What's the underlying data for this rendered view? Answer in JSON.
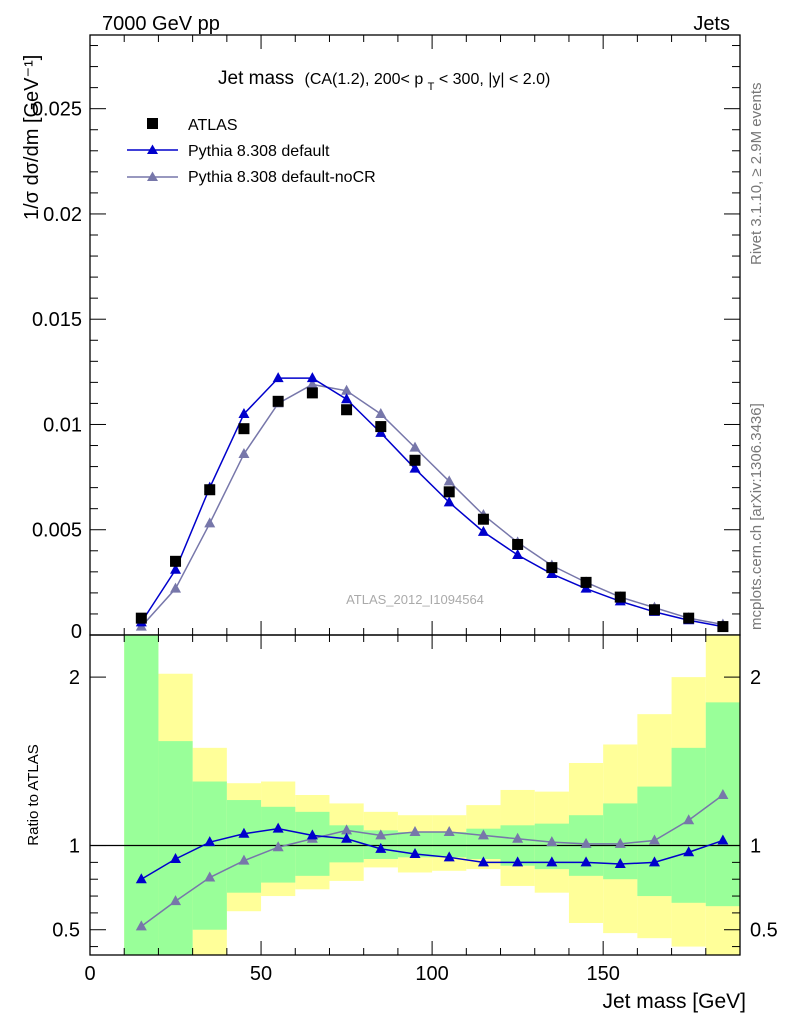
{
  "header": {
    "left": "7000 GeV pp",
    "right": "Jets"
  },
  "side_labels": {
    "rivet": "Rivet 3.1.10, ≥ 2.9M events",
    "mcplots": "mcplots.cern.ch [arXiv:1306.3436]"
  },
  "chart_data": [
    {
      "type": "scatter",
      "panel": "main",
      "title_main": "Jet mass",
      "title_detail_pre": "(CA(1.2), 200< p",
      "title_detail_sub": "T",
      "title_detail_post": " < 300, |y| < 2.0)",
      "ylabel": "1/σ dσ/dm [GeV⁻¹]",
      "watermark": "ATLAS_2012_I1094564",
      "xlim": [
        0,
        190
      ],
      "ylim": [
        0,
        0.0285
      ],
      "yticks": [
        0.005,
        0.01,
        0.015,
        0.02,
        0.025
      ],
      "ytick_labels": [
        "0.005",
        "0.01",
        "0.015",
        "0.02",
        "0.025"
      ],
      "ytick_zero_label": "0",
      "legend_position": "top-left",
      "x": [
        15,
        25,
        35,
        45,
        55,
        65,
        75,
        85,
        95,
        105,
        115,
        125,
        135,
        145,
        155,
        165,
        175,
        185
      ],
      "series": [
        {
          "name": "ATLAS",
          "marker": "square",
          "color": "#000000",
          "values": [
            0.0008,
            0.0035,
            0.0069,
            0.0098,
            0.0111,
            0.0115,
            0.0107,
            0.0099,
            0.0083,
            0.0068,
            0.0055,
            0.0043,
            0.0032,
            0.0025,
            0.0018,
            0.0012,
            0.0008,
            0.0004
          ]
        },
        {
          "name": "Pythia 8.308 default",
          "marker": "triangle",
          "color": "#0000cc",
          "values": [
            0.0006,
            0.0031,
            0.007,
            0.0105,
            0.0122,
            0.0122,
            0.0112,
            0.0096,
            0.0079,
            0.0063,
            0.0049,
            0.0038,
            0.0029,
            0.0022,
            0.0016,
            0.0011,
            0.0007,
            0.0004
          ]
        },
        {
          "name": "Pythia 8.308 default-noCR",
          "marker": "triangle",
          "color": "#7777aa",
          "values": [
            0.0004,
            0.0022,
            0.0053,
            0.0086,
            0.011,
            0.0119,
            0.0116,
            0.0105,
            0.0089,
            0.0073,
            0.0057,
            0.0044,
            0.0033,
            0.0025,
            0.0018,
            0.0013,
            0.0008,
            0.0005
          ]
        }
      ]
    },
    {
      "type": "line",
      "panel": "ratio",
      "ylabel": "Ratio to ATLAS",
      "xlabel": "Jet mass [GeV]",
      "xlim": [
        0,
        190
      ],
      "ylim": [
        0.35,
        2.25
      ],
      "xticks": [
        0,
        50,
        100,
        150
      ],
      "yticks": [
        0.5,
        1,
        2
      ],
      "ytick_labels": [
        "0.5",
        "1",
        "2"
      ],
      "reference_line": 1,
      "bin_edges": [
        10,
        20,
        30,
        40,
        50,
        60,
        70,
        80,
        90,
        100,
        110,
        120,
        130,
        140,
        150,
        160,
        170,
        180,
        190
      ],
      "bands": [
        {
          "name": "inner",
          "color": "#99ff99",
          "lower": [
            0.35,
            0.35,
            0.5,
            0.72,
            0.78,
            0.82,
            0.9,
            0.92,
            0.93,
            0.93,
            0.92,
            0.88,
            0.86,
            0.82,
            0.8,
            0.7,
            0.66,
            0.64
          ],
          "upper": [
            2.25,
            1.62,
            1.38,
            1.27,
            1.23,
            1.2,
            1.12,
            1.09,
            1.08,
            1.08,
            1.1,
            1.12,
            1.13,
            1.18,
            1.25,
            1.35,
            1.58,
            1.85
          ]
        },
        {
          "name": "outer",
          "color": "#ffff99",
          "lower": [
            0.35,
            0.35,
            0.35,
            0.61,
            0.7,
            0.74,
            0.79,
            0.87,
            0.84,
            0.85,
            0.86,
            0.76,
            0.72,
            0.54,
            0.48,
            0.45,
            0.4,
            0.35
          ],
          "upper": [
            2.25,
            2.02,
            1.58,
            1.37,
            1.38,
            1.3,
            1.25,
            1.2,
            1.18,
            1.18,
            1.24,
            1.33,
            1.32,
            1.49,
            1.6,
            1.78,
            2.0,
            2.25
          ]
        }
      ],
      "x": [
        15,
        25,
        35,
        45,
        55,
        65,
        75,
        85,
        95,
        105,
        115,
        125,
        135,
        145,
        155,
        165,
        175,
        185
      ],
      "series": [
        {
          "name": "Pythia 8.308 default",
          "color": "#0000cc",
          "values": [
            0.8,
            0.92,
            1.02,
            1.07,
            1.1,
            1.06,
            1.04,
            0.98,
            0.95,
            0.93,
            0.9,
            0.9,
            0.9,
            0.9,
            0.89,
            0.9,
            0.96,
            1.03
          ]
        },
        {
          "name": "Pythia 8.308 default-noCR",
          "color": "#7777aa",
          "values": [
            0.52,
            0.67,
            0.81,
            0.91,
            0.99,
            1.04,
            1.09,
            1.06,
            1.08,
            1.08,
            1.06,
            1.04,
            1.02,
            1.01,
            1.01,
            1.03,
            1.15,
            1.3
          ]
        }
      ]
    }
  ]
}
